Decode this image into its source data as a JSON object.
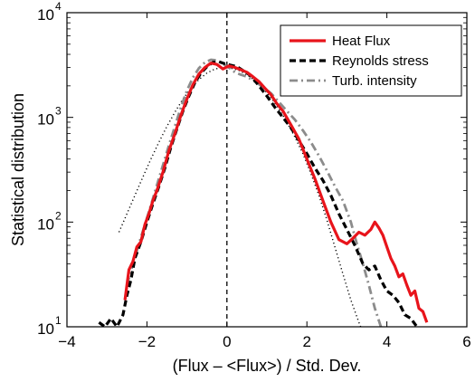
{
  "chart_data": {
    "type": "line",
    "title": "",
    "xlabel": "(Flux – <Flux>) / Std. Dev.",
    "ylabel": "Statistical distribution",
    "xlim": [
      -4,
      6
    ],
    "ylim": [
      10,
      10000
    ],
    "yscale": "log",
    "xticks": [
      "−4",
      "−2",
      "0",
      "2",
      "4",
      "6"
    ],
    "yticks": [
      {
        "base": "10",
        "exp": "1"
      },
      {
        "base": "10",
        "exp": "2"
      },
      {
        "base": "10",
        "exp": "3"
      },
      {
        "base": "10",
        "exp": "4"
      }
    ],
    "grid": false,
    "legend_position": "top-right",
    "vline": 0,
    "series": [
      {
        "name": "Heat Flux",
        "color": "#e8141b",
        "style": "solid",
        "x": [
          -2.55,
          -2.45,
          -2.35,
          -2.25,
          -2.15,
          -2.05,
          -1.95,
          -1.85,
          -1.75,
          -1.6,
          -1.45,
          -1.3,
          -1.15,
          -1.0,
          -0.85,
          -0.7,
          -0.55,
          -0.4,
          -0.25,
          -0.1,
          0.05,
          0.2,
          0.35,
          0.5,
          0.65,
          0.8,
          0.95,
          1.1,
          1.25,
          1.4,
          1.6,
          1.8,
          2.0,
          2.2,
          2.4,
          2.6,
          2.8,
          3.0,
          3.15,
          3.3,
          3.45,
          3.6,
          3.7,
          3.8,
          3.9,
          4.0,
          4.1,
          4.2,
          4.3,
          4.4,
          4.5,
          4.6,
          4.7,
          4.8,
          4.9,
          5.0
        ],
        "y": [
          18,
          35,
          42,
          58,
          65,
          95,
          120,
          160,
          200,
          300,
          480,
          700,
          1050,
          1500,
          2050,
          2600,
          3000,
          3300,
          3200,
          2900,
          3100,
          3000,
          2850,
          2700,
          2450,
          2200,
          1900,
          1650,
          1350,
          1150,
          850,
          620,
          400,
          260,
          160,
          100,
          68,
          62,
          70,
          80,
          75,
          85,
          100,
          88,
          75,
          58,
          45,
          38,
          30,
          32,
          25,
          20,
          22,
          15,
          14,
          11
        ]
      },
      {
        "name": "Reynolds stress",
        "color": "#000000",
        "style": "dashed",
        "x": [
          -3.2,
          -3.05,
          -2.9,
          -2.75,
          -2.6,
          -2.5,
          -2.4,
          -2.3,
          -2.15,
          -2.0,
          -1.85,
          -1.7,
          -1.55,
          -1.4,
          -1.25,
          -1.1,
          -0.95,
          -0.8,
          -0.65,
          -0.5,
          -0.35,
          -0.2,
          -0.05,
          0.1,
          0.25,
          0.4,
          0.6,
          0.8,
          1.0,
          1.2,
          1.4,
          1.6,
          1.8,
          2.0,
          2.2,
          2.4,
          2.6,
          2.8,
          3.0,
          3.2,
          3.4,
          3.55,
          3.7,
          3.85,
          4.0,
          4.15,
          4.3,
          4.45,
          4.6,
          4.75
        ],
        "y": [
          11,
          10,
          12,
          10,
          13,
          20,
          28,
          45,
          65,
          100,
          150,
          220,
          330,
          520,
          780,
          1150,
          1600,
          2150,
          2650,
          3050,
          3350,
          3400,
          3250,
          3150,
          3050,
          2800,
          2500,
          2000,
          1600,
          1250,
          1000,
          800,
          600,
          450,
          330,
          250,
          180,
          120,
          85,
          60,
          40,
          35,
          38,
          28,
          22,
          20,
          17,
          13,
          12,
          10
        ]
      },
      {
        "name": "Turb. intensity",
        "color": "#8c8c8c",
        "style": "dashdot",
        "x": [
          -2.5,
          -2.35,
          -2.2,
          -2.05,
          -1.9,
          -1.75,
          -1.6,
          -1.45,
          -1.3,
          -1.15,
          -1.0,
          -0.85,
          -0.7,
          -0.55,
          -0.4,
          -0.25,
          -0.1,
          0.05,
          0.2,
          0.35,
          0.5,
          0.7,
          0.9,
          1.1,
          1.3,
          1.5,
          1.7,
          1.9,
          2.1,
          2.3,
          2.5,
          2.7,
          2.9,
          3.1,
          3.25,
          3.4,
          3.55,
          3.7,
          3.85
        ],
        "y": [
          25,
          40,
          62,
          95,
          145,
          225,
          350,
          540,
          820,
          1250,
          1800,
          2400,
          2950,
          3350,
          3550,
          3500,
          3250,
          3000,
          2700,
          2550,
          2450,
          2200,
          1950,
          1700,
          1400,
          1150,
          950,
          750,
          580,
          430,
          310,
          220,
          160,
          100,
          62,
          40,
          25,
          15,
          10
        ]
      },
      {
        "name": "",
        "color": "#000000",
        "style": "dotted",
        "x": [
          -2.7,
          -2.5,
          -2.3,
          -2.1,
          -1.9,
          -1.7,
          -1.5,
          -1.3,
          -1.1,
          -0.9,
          -0.7,
          -0.5,
          -0.3,
          -0.1,
          0.1,
          0.3,
          0.5,
          0.7,
          0.9,
          1.1,
          1.3,
          1.5,
          1.7,
          1.9,
          2.1,
          2.3,
          2.5,
          2.7,
          2.9,
          3.1,
          3.3,
          3.45
        ],
        "y": [
          80,
          120,
          180,
          270,
          400,
          580,
          820,
          1120,
          1500,
          1900,
          2300,
          2650,
          2900,
          3000,
          2950,
          2800,
          2550,
          2250,
          1900,
          1550,
          1200,
          900,
          650,
          450,
          290,
          180,
          105,
          58,
          32,
          18,
          11,
          8
        ]
      }
    ]
  }
}
